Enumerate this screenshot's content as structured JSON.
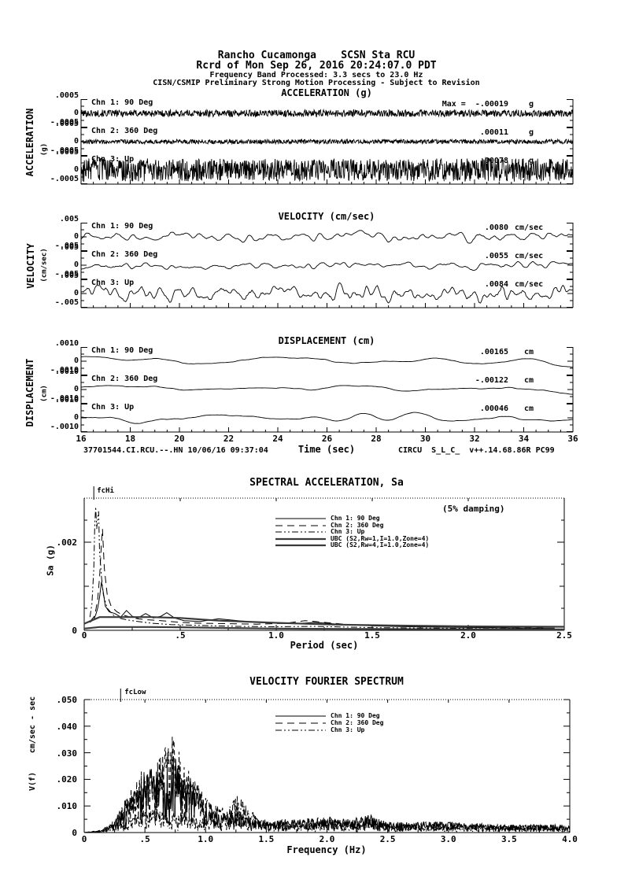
{
  "page": {
    "ink": "#000000",
    "paper": "#ffffff"
  },
  "header": {
    "station_line": "Rancho Cucamonga    SCSN Sta RCU",
    "record_line": "Rcrd of Mon Sep 26, 2016 20:24:07.0 PDT",
    "band_line": "Frequency Band Processed: 3.3 secs to 23.0 Hz",
    "notice_line": "CISN/CSMIP Preliminary Strong Motion Processing - Subject to Revision"
  },
  "footer": {
    "record_id": "37701544.CI.RCU.--.HN 10/06/16 09:37:04",
    "processing_tag": "CIRCU  S_L_C_  v++.14.68.86R PC99"
  },
  "chart_data": [
    {
      "id": "acceleration",
      "type": "line",
      "title": "ACCELERATION (g)",
      "ylabel": "ACCELERATION",
      "yunits": "(g)",
      "xlim": [
        16,
        36
      ],
      "x_ticks": [
        16,
        18,
        20,
        22,
        24,
        26,
        28,
        30,
        32,
        34,
        36
      ],
      "show_x_labels": false,
      "xlabel": null,
      "ylim_each": [
        -0.0005,
        0.0005
      ],
      "y_tick_labels": [
        ".0005",
        "0",
        "-.0005"
      ],
      "series": [
        {
          "name": "Chn 1: 90 Deg",
          "peak_label": "Max =  -.00019",
          "units": "g",
          "peak_value": -0.00019,
          "render": {
            "seed": 101,
            "n": 1200,
            "smooth": 0,
            "amp": 0.28
          }
        },
        {
          "name": "Chn 2: 360 Deg",
          "peak_label": ".00011",
          "units": "g",
          "peak_value": 0.00011,
          "render": {
            "seed": 102,
            "n": 1200,
            "smooth": 0,
            "amp": 0.18
          }
        },
        {
          "name": "Chn 3: Up",
          "peak_label": ".00078",
          "units": "g",
          "peak_value": 0.00078,
          "render": {
            "seed": 103,
            "n": 1200,
            "smooth": 0,
            "amp": 0.95
          }
        }
      ]
    },
    {
      "id": "velocity",
      "type": "line",
      "title": "VELOCITY (cm/sec)",
      "ylabel": "VELOCITY",
      "yunits": "(cm/sec)",
      "xlim": [
        16,
        36
      ],
      "x_ticks": [
        16,
        18,
        20,
        22,
        24,
        26,
        28,
        30,
        32,
        34,
        36
      ],
      "show_x_labels": false,
      "xlabel": null,
      "ylim_each": [
        -0.005,
        0.005
      ],
      "y_tick_labels": [
        ".005",
        "0",
        "-.005"
      ],
      "series": [
        {
          "name": "Chn 1: 90 Deg",
          "peak_label": ".0080",
          "units": "cm/sec",
          "peak_value": 0.008,
          "render": {
            "seed": 201,
            "n": 640,
            "smooth": 3,
            "amp": 0.52
          }
        },
        {
          "name": "Chn 2: 360 Deg",
          "peak_label": ".0055",
          "units": "cm/sec",
          "peak_value": 0.0055,
          "render": {
            "seed": 202,
            "n": 640,
            "smooth": 3,
            "amp": 0.42
          }
        },
        {
          "name": "Chn 3: Up",
          "peak_label": ".0084",
          "units": "cm/sec",
          "peak_value": 0.0084,
          "render": {
            "seed": 203,
            "n": 640,
            "smooth": 2,
            "amp": 0.85
          }
        }
      ]
    },
    {
      "id": "displacement",
      "type": "line",
      "title": "DISPLACEMENT (cm)",
      "ylabel": "DISPLACEMENT",
      "yunits": "(cm)",
      "xlim": [
        16,
        36
      ],
      "x_ticks": [
        16,
        18,
        20,
        22,
        24,
        26,
        28,
        30,
        32,
        34,
        36
      ],
      "show_x_labels": true,
      "xlabel": "Time (sec)",
      "ylim_each": [
        -0.001,
        0.001
      ],
      "y_tick_labels": [
        ".0010",
        "0",
        "-.0010"
      ],
      "series": [
        {
          "name": "Chn 1: 90 Deg",
          "peak_label": ".00165",
          "units": "cm",
          "peak_value": 0.00165,
          "render": {
            "seed": 301,
            "n": 300,
            "smooth": 8,
            "amp": 0.48
          }
        },
        {
          "name": "Chn 2: 360 Deg",
          "peak_label": "-.00122",
          "units": "cm",
          "peak_value": -0.00122,
          "render": {
            "seed": 302,
            "n": 300,
            "smooth": 8,
            "amp": 0.38
          }
        },
        {
          "name": "Chn 3: Up",
          "peak_label": ".00046",
          "units": "cm",
          "peak_value": 0.00046,
          "render": {
            "seed": 303,
            "n": 300,
            "smooth": 6,
            "amp": 0.45
          }
        }
      ]
    },
    {
      "id": "spectral-acceleration",
      "type": "line",
      "title": "SPECTRAL ACCELERATION, Sa",
      "annotation": "(5% damping)",
      "marker": {
        "label": "fcHi",
        "x": 0.05
      },
      "xlabel": "Period (sec)",
      "ylabel": "Sa (g)",
      "xlim": [
        0,
        2.5
      ],
      "ylim": [
        0,
        0.003
      ],
      "x_ticks": [
        0,
        0.5,
        1.0,
        1.5,
        2.0,
        2.5
      ],
      "x_tick_labels": [
        "0",
        ".5",
        "1.0",
        "1.5",
        "2.0",
        "2.5"
      ],
      "y_ticks": [
        0,
        0.002
      ],
      "y_tick_labels": [
        "0",
        ".002"
      ],
      "legend_position": "upper center",
      "series": [
        {
          "name": "Chn 1: 90 Deg",
          "style": "solid",
          "x": [
            0.03,
            0.05,
            0.06,
            0.07,
            0.08,
            0.09,
            0.1,
            0.11,
            0.13,
            0.16,
            0.19,
            0.22,
            0.25,
            0.28,
            0.32,
            0.36,
            0.4,
            0.43,
            0.47,
            0.52,
            0.6,
            0.7,
            0.8,
            0.9,
            1.0,
            1.1,
            1.2,
            1.35,
            1.5,
            1.7,
            1.9,
            2.1,
            2.3,
            2.45
          ],
          "y": [
            0.00018,
            0.00025,
            0.00035,
            0.0005,
            0.00075,
            0.0011,
            0.00085,
            0.00055,
            0.00042,
            0.00038,
            0.0003,
            0.00045,
            0.00032,
            0.00028,
            0.00038,
            0.00028,
            0.00032,
            0.0004,
            0.00028,
            0.00022,
            0.0002,
            0.00026,
            0.00022,
            0.00018,
            0.00016,
            0.00015,
            0.00018,
            0.00013,
            0.0001,
            8e-05,
            7e-05,
            6e-05,
            5e-05,
            5e-05
          ]
        },
        {
          "name": "Chn 2: 360 Deg",
          "style": "dash",
          "x": [
            0.03,
            0.05,
            0.06,
            0.07,
            0.08,
            0.09,
            0.095,
            0.105,
            0.12,
            0.14,
            0.17,
            0.2,
            0.24,
            0.28,
            0.33,
            0.4,
            0.5,
            0.6,
            0.75,
            0.9,
            1.05,
            1.15,
            1.25,
            1.4,
            1.6,
            1.8,
            2.0,
            2.2,
            2.4
          ],
          "y": [
            0.0002,
            0.0003,
            0.00045,
            0.0007,
            0.0012,
            0.002,
            0.0023,
            0.0014,
            0.0008,
            0.00055,
            0.00042,
            0.00035,
            0.0003,
            0.00026,
            0.00024,
            0.00022,
            0.00018,
            0.00016,
            0.00015,
            0.00014,
            0.00016,
            0.00022,
            0.00018,
            0.00012,
            0.0001,
            8e-05,
            7e-05,
            6e-05,
            5e-05
          ]
        },
        {
          "name": "Chn 3: Up",
          "style": "dashdot",
          "x": [
            0.03,
            0.04,
            0.05,
            0.055,
            0.06,
            0.065,
            0.07,
            0.075,
            0.08,
            0.09,
            0.1,
            0.12,
            0.15,
            0.18,
            0.22,
            0.28,
            0.35,
            0.45,
            0.6,
            0.8,
            1.0,
            1.2,
            1.5,
            1.8,
            2.1,
            2.4
          ],
          "y": [
            0.0003,
            0.0006,
            0.0014,
            0.0024,
            0.0028,
            0.0023,
            0.00255,
            0.0027,
            0.0018,
            0.0012,
            0.0008,
            0.0005,
            0.00035,
            0.00028,
            0.00024,
            0.0002,
            0.00016,
            0.00013,
            0.00011,
            9e-05,
            8e-05,
            9e-05,
            6e-05,
            5e-05,
            4e-05,
            4e-05
          ]
        },
        {
          "name": "UBC (S2,Rw=1,I=1.0,Zone=4)",
          "style": "thick",
          "x": [
            0,
            0.08,
            0.2,
            0.35,
            0.5,
            0.7,
            1.0,
            1.3,
            1.6,
            2.0,
            2.5
          ],
          "y": [
            0.00015,
            0.0003,
            0.0003,
            0.0003,
            0.00028,
            0.00022,
            0.00017,
            0.00013,
            0.00011,
            9e-05,
            8e-05
          ]
        },
        {
          "name": "UBC (S2,Rw=4,I=1.0,Zone=4)",
          "style": "thick",
          "x": [
            0,
            0.08,
            0.2,
            0.35,
            0.5,
            0.7,
            1.0,
            1.3,
            1.6,
            2.0,
            2.5
          ],
          "y": [
            4e-05,
            7.5e-05,
            7.5e-05,
            7.5e-05,
            7e-05,
            5.5e-05,
            4e-05,
            3.3e-05,
            2.8e-05,
            2.3e-05,
            2e-05
          ]
        }
      ]
    },
    {
      "id": "velocity-fourier-spectrum",
      "type": "line",
      "title": "VELOCITY FOURIER SPECTRUM",
      "marker": {
        "label": "fcLow",
        "x": 0.3
      },
      "xlabel": "Frequency (Hz)",
      "ylabel_lines": [
        "cm/sec - sec",
        "V(f)"
      ],
      "xlim": [
        0,
        4.0
      ],
      "ylim": [
        0,
        0.05
      ],
      "x_ticks": [
        0,
        0.5,
        1.0,
        1.5,
        2.0,
        2.5,
        3.0,
        3.5,
        4.0
      ],
      "x_tick_labels": [
        "0",
        ".5",
        "1.0",
        "1.5",
        "2.0",
        "2.5",
        "3.0",
        "3.5",
        "4.0"
      ],
      "y_ticks": [
        0,
        0.01,
        0.02,
        0.03,
        0.04,
        0.05
      ],
      "y_tick_labels": [
        "0",
        ".010",
        ".020",
        ".030",
        ".040",
        ".050"
      ],
      "legend_position": "upper center",
      "series": [
        {
          "name": "Chn 1: 90 Deg",
          "style": "solid",
          "envelope_x": [
            0,
            0.15,
            0.25,
            0.35,
            0.45,
            0.55,
            0.65,
            0.72,
            0.78,
            0.85,
            0.95,
            1.05,
            1.15,
            1.25,
            1.32,
            1.45,
            1.6,
            1.8,
            2.0,
            2.2,
            2.35,
            2.5,
            2.8,
            3.1,
            3.4,
            3.7,
            4.0
          ],
          "envelope_y": [
            0,
            0.001,
            0.004,
            0.012,
            0.02,
            0.027,
            0.025,
            0.03,
            0.026,
            0.022,
            0.016,
            0.01,
            0.008,
            0.009,
            0.007,
            0.005,
            0.005,
            0.005,
            0.006,
            0.005,
            0.007,
            0.004,
            0.004,
            0.004,
            0.003,
            0.003,
            0.003
          ]
        },
        {
          "name": "Chn 2: 360 Deg",
          "style": "dash",
          "envelope_x": [
            0,
            0.15,
            0.25,
            0.35,
            0.45,
            0.55,
            0.65,
            0.72,
            0.78,
            0.85,
            0.95,
            1.05,
            1.15,
            1.25,
            1.32,
            1.45,
            1.6,
            1.8,
            2.0,
            2.2,
            2.35,
            2.5,
            2.8,
            3.1,
            3.4,
            3.7,
            4.0
          ],
          "envelope_y": [
            0,
            0.001,
            0.005,
            0.014,
            0.022,
            0.028,
            0.031,
            0.037,
            0.032,
            0.024,
            0.018,
            0.012,
            0.009,
            0.008,
            0.006,
            0.005,
            0.004,
            0.005,
            0.006,
            0.004,
            0.006,
            0.003,
            0.004,
            0.003,
            0.003,
            0.003,
            0.002
          ]
        },
        {
          "name": "Chn 3: Up",
          "style": "dashdot",
          "envelope_x": [
            0,
            0.15,
            0.25,
            0.35,
            0.45,
            0.55,
            0.65,
            0.72,
            0.78,
            0.85,
            0.95,
            1.05,
            1.15,
            1.25,
            1.32,
            1.45,
            1.6,
            1.8,
            2.0,
            2.2,
            2.35,
            2.5,
            2.8,
            3.1,
            3.4,
            3.7,
            4.0
          ],
          "envelope_y": [
            0,
            0.0005,
            0.002,
            0.005,
            0.007,
            0.009,
            0.008,
            0.007,
            0.008,
            0.007,
            0.006,
            0.005,
            0.007,
            0.014,
            0.012,
            0.004,
            0.003,
            0.003,
            0.004,
            0.004,
            0.005,
            0.003,
            0.002,
            0.002,
            0.002,
            0.002,
            0.002
          ]
        }
      ]
    }
  ]
}
